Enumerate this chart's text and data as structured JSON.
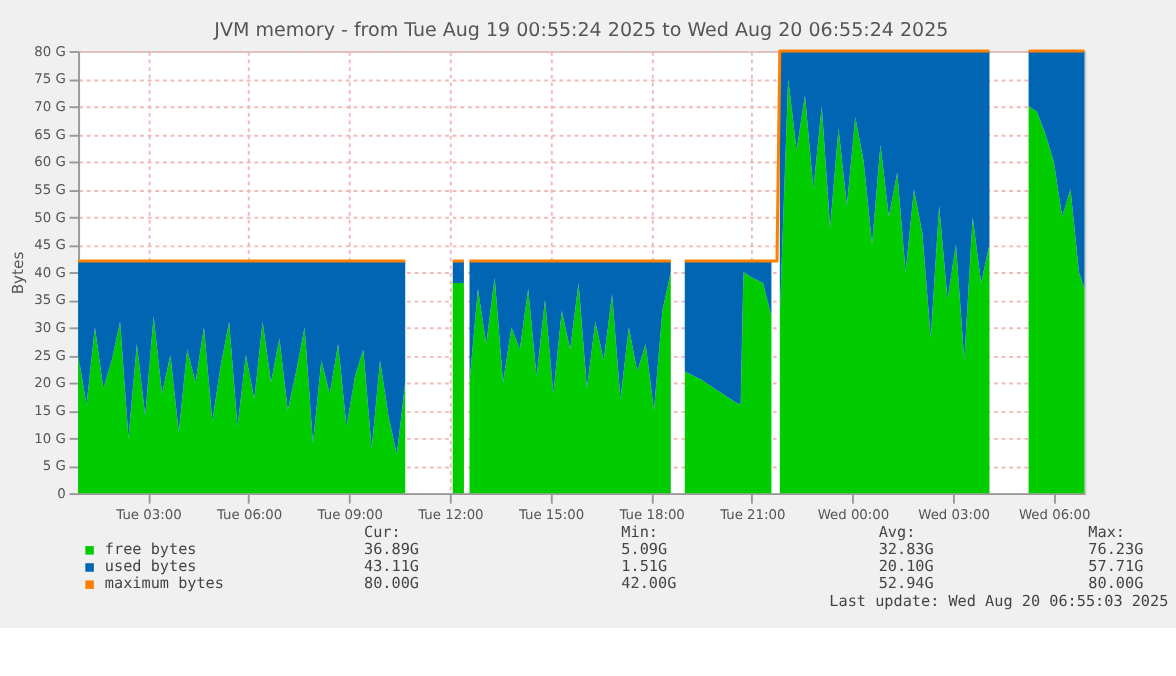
{
  "chart_data": {
    "type": "area",
    "title": "JVM memory - from Tue Aug 19 00:55:24 2025 to Wed Aug 20 06:55:24 2025",
    "ylabel": "Bytes",
    "stacked": true,
    "grid": true,
    "legend": "bottom left",
    "xlim": [
      "2025-08-19T00:55",
      "2025-08-20T06:55"
    ],
    "xticks": [
      {
        "value": "2025-08-19T03:00",
        "label": "Tue 03:00"
      },
      {
        "value": "2025-08-19T06:00",
        "label": "Tue 06:00"
      },
      {
        "value": "2025-08-19T09:00",
        "label": "Tue 09:00"
      },
      {
        "value": "2025-08-19T12:00",
        "label": "Tue 12:00"
      },
      {
        "value": "2025-08-19T15:00",
        "label": "Tue 15:00"
      },
      {
        "value": "2025-08-19T18:00",
        "label": "Tue 18:00"
      },
      {
        "value": "2025-08-19T21:00",
        "label": "Tue 21:00"
      },
      {
        "value": "2025-08-20T00:00",
        "label": "Wed 00:00"
      },
      {
        "value": "2025-08-20T03:00",
        "label": "Wed 03:00"
      },
      {
        "value": "2025-08-20T06:00",
        "label": "Wed 06:00"
      }
    ],
    "ylim": [
      0,
      80
    ],
    "yticks": [
      0,
      {
        "value": 5,
        "label": "5 G"
      },
      {
        "value": 10,
        "label": "10 G"
      },
      {
        "value": 15,
        "label": "15 G"
      },
      {
        "value": 20,
        "label": "20 G"
      },
      {
        "value": 25,
        "label": "25 G"
      },
      {
        "value": 30,
        "label": "30 G"
      },
      {
        "value": 35,
        "label": "35 G"
      },
      {
        "value": 40,
        "label": "40 G"
      },
      {
        "value": 45,
        "label": "45 G"
      },
      {
        "value": 50,
        "label": "50 G"
      },
      {
        "value": 55,
        "label": "55 G"
      },
      {
        "value": 60,
        "label": "60 G"
      },
      {
        "value": 65,
        "label": "65 G"
      },
      {
        "value": 70,
        "label": "70 G"
      },
      {
        "value": 75,
        "label": "75 G"
      },
      {
        "value": 80,
        "label": "80 G"
      }
    ],
    "x": [
      "2025-08-19T00:55",
      "2025-08-19T01:10",
      "2025-08-19T01:25",
      "2025-08-19T01:40",
      "2025-08-19T01:55",
      "2025-08-19T02:10",
      "2025-08-19T02:25",
      "2025-08-19T02:40",
      "2025-08-19T02:55",
      "2025-08-19T03:10",
      "2025-08-19T03:25",
      "2025-08-19T03:40",
      "2025-08-19T03:55",
      "2025-08-19T04:10",
      "2025-08-19T04:25",
      "2025-08-19T04:40",
      "2025-08-19T04:55",
      "2025-08-19T05:10",
      "2025-08-19T05:25",
      "2025-08-19T05:40",
      "2025-08-19T05:55",
      "2025-08-19T06:10",
      "2025-08-19T06:25",
      "2025-08-19T06:40",
      "2025-08-19T06:55",
      "2025-08-19T07:10",
      "2025-08-19T07:25",
      "2025-08-19T07:40",
      "2025-08-19T07:55",
      "2025-08-19T08:10",
      "2025-08-19T08:25",
      "2025-08-19T08:40",
      "2025-08-19T08:55",
      "2025-08-19T09:10",
      "2025-08-19T09:25",
      "2025-08-19T09:40",
      "2025-08-19T09:55",
      "2025-08-19T10:10",
      "2025-08-19T10:25",
      "2025-08-19T10:40",
      "2025-08-19T10:55",
      "2025-08-19T12:05",
      "2025-08-19T12:25",
      "2025-08-19T12:28",
      "2025-08-19T12:35",
      "2025-08-19T12:50",
      "2025-08-19T13:05",
      "2025-08-19T13:20",
      "2025-08-19T13:35",
      "2025-08-19T13:50",
      "2025-08-19T14:05",
      "2025-08-19T14:20",
      "2025-08-19T14:35",
      "2025-08-19T14:50",
      "2025-08-19T15:05",
      "2025-08-19T15:20",
      "2025-08-19T15:35",
      "2025-08-19T15:50",
      "2025-08-19T16:05",
      "2025-08-19T16:20",
      "2025-08-19T16:35",
      "2025-08-19T16:50",
      "2025-08-19T17:05",
      "2025-08-19T17:20",
      "2025-08-19T17:35",
      "2025-08-19T17:50",
      "2025-08-19T18:05",
      "2025-08-19T18:20",
      "2025-08-19T18:35",
      "2025-08-19T18:50",
      "2025-08-19T19:00",
      "2025-08-19T19:30",
      "2025-08-19T20:00",
      "2025-08-19T20:30",
      "2025-08-19T20:40",
      "2025-08-19T20:45",
      "2025-08-19T21:00",
      "2025-08-19T21:20",
      "2025-08-19T21:35",
      "2025-08-19T21:45",
      "2025-08-19T21:50",
      "2025-08-19T22:05",
      "2025-08-19T22:20",
      "2025-08-19T22:35",
      "2025-08-19T22:50",
      "2025-08-19T23:05",
      "2025-08-19T23:20",
      "2025-08-19T23:35",
      "2025-08-19T23:50",
      "2025-08-20T00:05",
      "2025-08-20T00:20",
      "2025-08-20T00:35",
      "2025-08-20T00:50",
      "2025-08-20T01:05",
      "2025-08-20T01:20",
      "2025-08-20T01:35",
      "2025-08-20T01:50",
      "2025-08-20T02:05",
      "2025-08-20T02:20",
      "2025-08-20T02:35",
      "2025-08-20T02:50",
      "2025-08-20T03:05",
      "2025-08-20T03:20",
      "2025-08-20T03:35",
      "2025-08-20T03:50",
      "2025-08-20T04:05",
      "2025-08-20T04:30",
      "2025-08-20T05:15",
      "2025-08-20T05:30",
      "2025-08-20T05:45",
      "2025-08-20T06:00",
      "2025-08-20T06:15",
      "2025-08-20T06:30",
      "2025-08-20T06:45",
      "2025-08-20T06:55"
    ],
    "series": [
      {
        "name": "free bytes",
        "color": "#00cc00",
        "values": [
          25,
          16,
          30,
          19,
          24,
          31,
          10,
          27,
          14,
          32,
          18,
          25,
          11,
          26,
          20,
          30,
          13,
          23,
          31,
          12,
          25,
          17,
          31,
          20,
          28,
          15,
          22,
          30,
          9,
          24,
          18,
          27,
          12,
          21,
          26,
          8,
          24,
          14,
          7,
          20,
          null,
          38,
          38,
          null,
          20,
          37,
          27,
          39,
          20,
          30,
          26,
          37,
          21,
          35,
          18,
          33,
          26,
          38,
          19,
          31,
          24,
          36,
          17,
          30,
          22,
          27,
          15,
          33,
          40,
          null,
          22,
          20.5,
          18.5,
          16.5,
          16,
          40,
          39,
          38,
          32,
          null,
          32,
          75,
          62,
          72,
          55,
          70,
          48,
          66,
          52,
          68,
          60,
          45,
          63,
          50,
          58,
          40,
          55,
          47,
          28,
          52,
          35,
          45,
          24,
          50,
          38,
          45,
          null,
          70,
          69,
          65,
          60,
          50,
          55,
          40,
          37
        ]
      },
      {
        "name": "used bytes",
        "color": "#0066b3",
        "values": [
          17,
          26,
          12,
          23,
          18,
          11,
          32,
          15,
          28,
          10,
          24,
          17,
          31,
          16,
          22,
          12,
          29,
          19,
          11,
          30,
          17,
          25,
          11,
          22,
          14,
          27,
          20,
          12,
          33,
          18,
          24,
          15,
          30,
          21,
          16,
          34,
          18,
          28,
          35,
          22,
          null,
          4,
          4,
          null,
          22,
          5,
          15,
          3,
          22,
          12,
          16,
          5,
          21,
          7,
          24,
          9,
          16,
          4,
          23,
          11,
          18,
          6,
          25,
          12,
          20,
          15,
          27,
          9,
          2,
          null,
          20,
          21.5,
          23.5,
          25.5,
          26,
          2,
          3,
          4,
          10,
          null,
          48,
          5,
          18,
          8,
          25,
          10,
          32,
          14,
          28,
          12,
          20,
          35,
          17,
          30,
          22,
          40,
          25,
          33,
          52,
          28,
          45,
          35,
          56,
          30,
          42,
          35,
          null,
          10,
          11,
          15,
          20,
          30,
          25,
          40,
          43
        ]
      },
      {
        "name": "maximum bytes",
        "color": "#ff8000",
        "type": "line",
        "values": [
          42,
          42,
          42,
          42,
          42,
          42,
          42,
          42,
          42,
          42,
          42,
          42,
          42,
          42,
          42,
          42,
          42,
          42,
          42,
          42,
          42,
          42,
          42,
          42,
          42,
          42,
          42,
          42,
          42,
          42,
          42,
          42,
          42,
          42,
          42,
          42,
          42,
          42,
          42,
          42,
          null,
          42,
          42,
          null,
          42,
          42,
          42,
          42,
          42,
          42,
          42,
          42,
          42,
          42,
          42,
          42,
          42,
          42,
          42,
          42,
          42,
          42,
          42,
          42,
          42,
          42,
          42,
          42,
          42,
          null,
          42,
          42,
          42,
          42,
          42,
          42,
          42,
          42,
          42,
          42,
          80,
          80,
          80,
          80,
          80,
          80,
          80,
          80,
          80,
          80,
          80,
          80,
          80,
          80,
          80,
          80,
          80,
          80,
          80,
          80,
          80,
          80,
          80,
          80,
          80,
          80,
          null,
          80,
          80,
          80,
          80,
          80,
          80,
          80,
          80
        ]
      }
    ],
    "annotations": [
      "Cur:",
      "Min:",
      "Avg:",
      "Max:",
      "36.89G",
      "5.09G",
      "32.83G",
      "76.23G",
      "43.11G",
      "1.51G",
      "20.10G",
      "57.71G",
      "80.00G",
      "42.00G",
      "52.94G",
      "80.00G",
      "Last update: Wed Aug 20 06:55:03 2025"
    ]
  }
}
